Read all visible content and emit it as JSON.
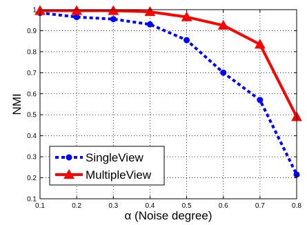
{
  "chart_data": {
    "type": "line",
    "xlabel": "α (Noise degree)",
    "ylabel": "NMI",
    "xlim": [
      0.1,
      0.8
    ],
    "ylim": [
      0.1,
      1.0
    ],
    "x_ticks": [
      "0.1",
      "0.2",
      "0.3",
      "0.4",
      "0.5",
      "0.6",
      "0.7",
      "0.8"
    ],
    "y_ticks": [
      "0.1",
      "0.2",
      "0.3",
      "0.4",
      "0.5",
      "0.6",
      "0.7",
      "0.8",
      "0.9",
      "1"
    ],
    "grid": true,
    "legend_position": "bottom-left",
    "x": [
      0.1,
      0.2,
      0.3,
      0.4,
      0.5,
      0.6,
      0.7,
      0.8
    ],
    "series": [
      {
        "name": "SingleView",
        "values": [
          0.985,
          0.965,
          0.955,
          0.93,
          0.855,
          0.7,
          0.57,
          0.215
        ],
        "color": "#0000ff",
        "line_style": "dotted",
        "marker": "circle"
      },
      {
        "name": "MultipleView",
        "values": [
          0.995,
          0.995,
          0.995,
          0.99,
          0.965,
          0.925,
          0.835,
          0.49
        ],
        "color": "#ff0000",
        "line_style": "solid",
        "marker": "triangle"
      }
    ]
  }
}
